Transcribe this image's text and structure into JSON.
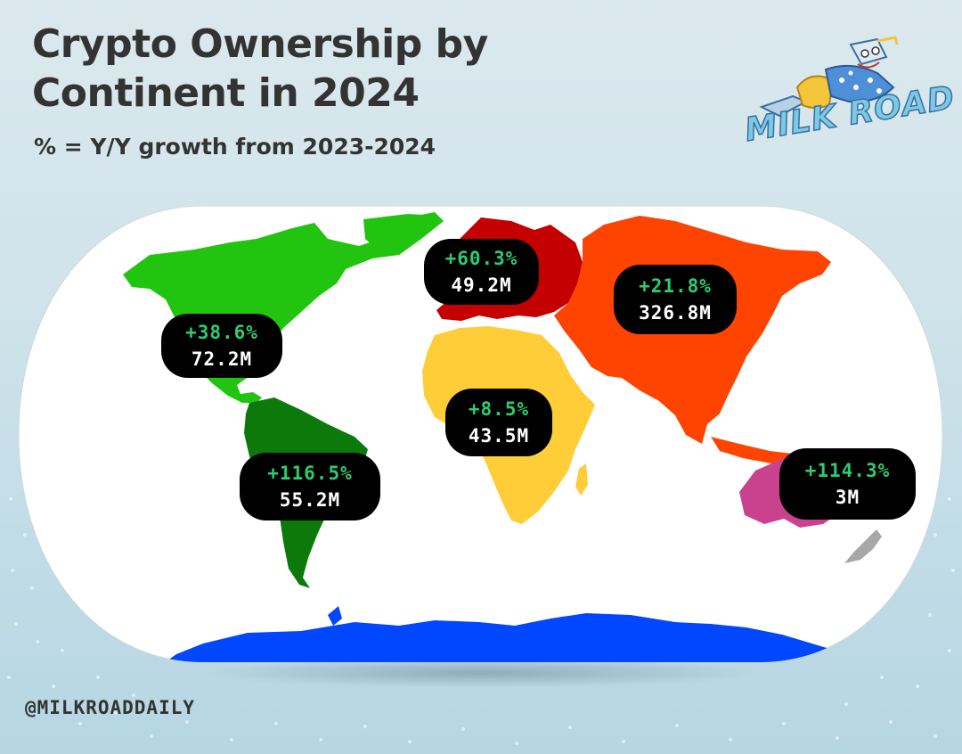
{
  "title_line1": "Crypto Ownership by",
  "title_line2": "Continent in 2024",
  "subtitle": "% = Y/Y growth from 2023-2024",
  "logo": {
    "text": "MILK ROAD",
    "icon": "milk-carton-mascot-icon"
  },
  "handle": "@MILKROADDAILY",
  "colors": {
    "north_america": "#21c40f",
    "south_america": "#0b7a0a",
    "europe": "#c40000",
    "africa": "#fecd38",
    "asia": "#fe4400",
    "oceania": "#c8428e",
    "antarctica": "#0047ff",
    "new_zealand": "#a7a7a7",
    "growth_text": "#2ecc71",
    "count_text": "#ffffff",
    "label_bg": "#000000"
  },
  "regions": [
    {
      "id": "north_america",
      "growth": "+38.6%",
      "count": "72.2M"
    },
    {
      "id": "europe",
      "growth": "+60.3%",
      "count": "49.2M"
    },
    {
      "id": "asia",
      "growth": "+21.8%",
      "count": "326.8M"
    },
    {
      "id": "africa",
      "growth": "+8.5%",
      "count": "43.5M"
    },
    {
      "id": "south_america",
      "growth": "+116.5%",
      "count": "55.2M"
    },
    {
      "id": "oceania",
      "growth": "+114.3%",
      "count": "3M"
    }
  ]
}
